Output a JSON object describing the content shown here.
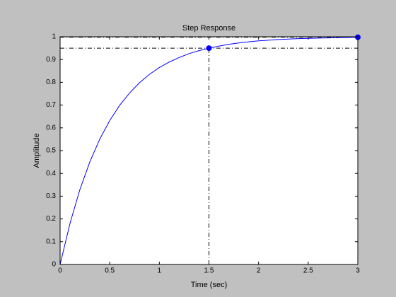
{
  "chart_data": {
    "type": "line",
    "title": "Step Response",
    "x_label": "Time (sec)",
    "y_label": "Amplitude",
    "x": [
      0,
      0.1,
      0.2,
      0.3,
      0.4,
      0.5,
      0.6,
      0.7,
      0.8,
      0.9,
      1.0,
      1.1,
      1.2,
      1.3,
      1.4,
      1.5,
      1.6,
      1.7,
      1.8,
      1.9,
      2.0,
      2.1,
      2.2,
      2.3,
      2.4,
      2.5,
      2.6,
      2.7,
      2.8,
      2.9,
      3.0
    ],
    "series": [
      {
        "color": "#0000ff",
        "values": [
          0,
          0.181,
          0.33,
          0.451,
          0.551,
          0.632,
          0.699,
          0.753,
          0.798,
          0.835,
          0.865,
          0.889,
          0.909,
          0.926,
          0.939,
          0.95,
          0.959,
          0.967,
          0.973,
          0.978,
          0.982,
          0.985,
          0.988,
          0.99,
          0.992,
          0.993,
          0.994,
          0.995,
          0.996,
          0.997,
          0.998
        ]
      }
    ],
    "markers": {
      "x": [
        1.5,
        3
      ],
      "values": [
        0.95,
        0.998
      ],
      "color": "#0000ff"
    },
    "xlim": [
      0,
      3
    ],
    "ylim": [
      0,
      1
    ],
    "xticks": [
      0,
      0.5,
      1,
      1.5,
      2,
      2.5,
      3
    ],
    "yticks": [
      0,
      0.1,
      0.2,
      0.3,
      0.4,
      0.5,
      0.6,
      0.7,
      0.8,
      0.9,
      1
    ],
    "grid": false
  }
}
